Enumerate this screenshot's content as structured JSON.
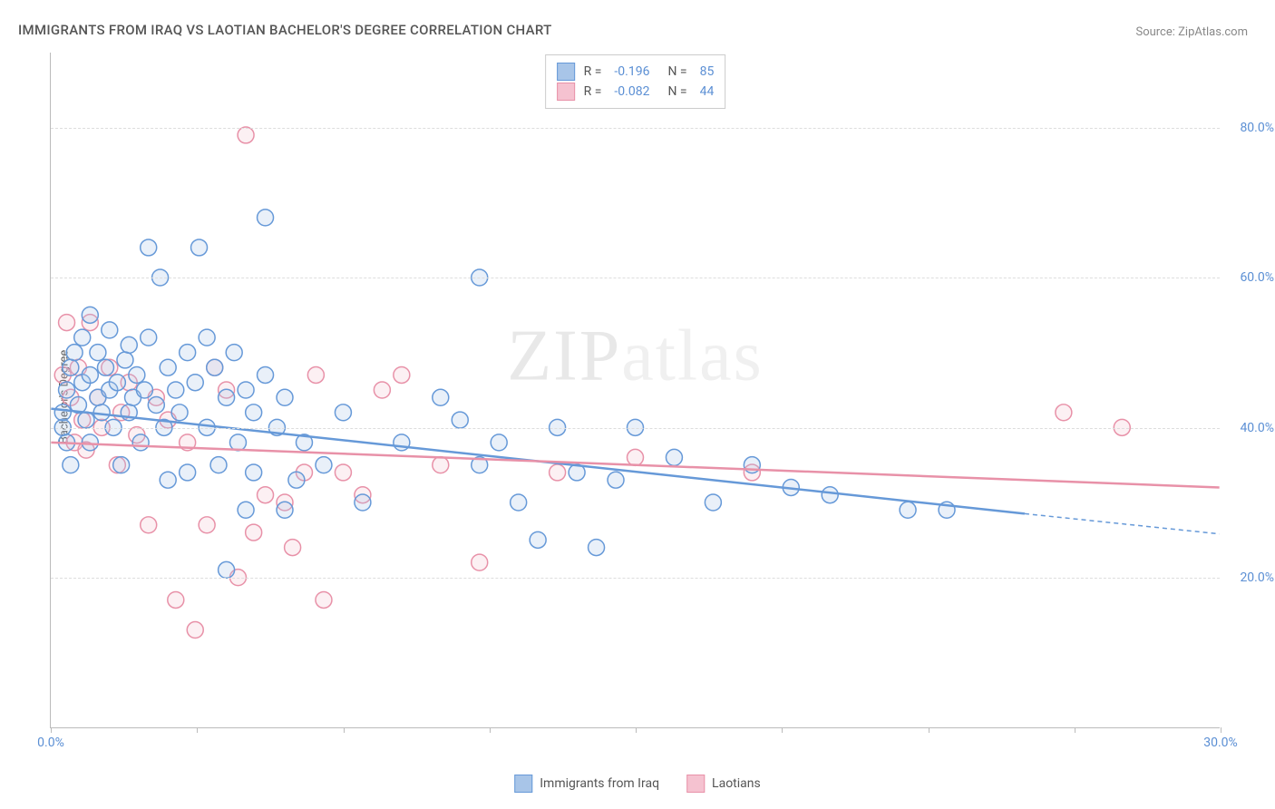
{
  "title": "IMMIGRANTS FROM IRAQ VS LAOTIAN BACHELOR'S DEGREE CORRELATION CHART",
  "source": "Source: ZipAtlas.com",
  "ylabel": "Bachelor's Degree",
  "watermark_a": "ZIP",
  "watermark_b": "atlas",
  "chart": {
    "type": "scatter",
    "xlim": [
      0,
      30
    ],
    "ylim": [
      0,
      90
    ],
    "yticks": [
      20,
      40,
      60,
      80
    ],
    "ytick_labels": [
      "20.0%",
      "40.0%",
      "60.0%",
      "80.0%"
    ],
    "xticks": [
      0,
      3.75,
      7.5,
      11.25,
      15,
      18.75,
      22.5,
      26.25,
      30
    ],
    "xtick_labels_shown": {
      "0": "0.0%",
      "30": "30.0%"
    },
    "grid_color": "#dddddd",
    "axis_color": "#bbbbbb",
    "background_color": "#ffffff",
    "tick_color": "#5b8fd4",
    "marker_radius": 9,
    "marker_stroke_width": 1.5,
    "marker_fill_opacity": 0.25,
    "line_width": 2.5,
    "series": [
      {
        "name": "Immigrants from Iraq",
        "key": "iraq",
        "color_stroke": "#6699d8",
        "color_fill": "#a8c5e8",
        "R": "-0.196",
        "N": "85",
        "trend": {
          "x1": 0,
          "y1": 42.5,
          "x2": 25,
          "y2": 28.5,
          "extrap_x2": 30,
          "extrap_y2": 25.8
        },
        "points": [
          [
            0.3,
            40
          ],
          [
            0.3,
            42
          ],
          [
            0.4,
            45
          ],
          [
            0.4,
            38
          ],
          [
            0.5,
            48
          ],
          [
            0.5,
            35
          ],
          [
            0.6,
            50
          ],
          [
            0.7,
            43
          ],
          [
            0.8,
            46
          ],
          [
            0.8,
            52
          ],
          [
            0.9,
            41
          ],
          [
            1.0,
            47
          ],
          [
            1.0,
            55
          ],
          [
            1.0,
            38
          ],
          [
            1.2,
            44
          ],
          [
            1.2,
            50
          ],
          [
            1.3,
            42
          ],
          [
            1.4,
            48
          ],
          [
            1.5,
            45
          ],
          [
            1.5,
            53
          ],
          [
            1.6,
            40
          ],
          [
            1.7,
            46
          ],
          [
            1.8,
            35
          ],
          [
            1.9,
            49
          ],
          [
            2.0,
            42
          ],
          [
            2.0,
            51
          ],
          [
            2.1,
            44
          ],
          [
            2.2,
            47
          ],
          [
            2.3,
            38
          ],
          [
            2.4,
            45
          ],
          [
            2.5,
            52
          ],
          [
            2.5,
            64
          ],
          [
            2.7,
            43
          ],
          [
            2.8,
            60
          ],
          [
            2.9,
            40
          ],
          [
            3.0,
            48
          ],
          [
            3.0,
            33
          ],
          [
            3.2,
            45
          ],
          [
            3.3,
            42
          ],
          [
            3.5,
            50
          ],
          [
            3.5,
            34
          ],
          [
            3.7,
            46
          ],
          [
            3.8,
            64
          ],
          [
            4.0,
            40
          ],
          [
            4.0,
            52
          ],
          [
            4.2,
            48
          ],
          [
            4.3,
            35
          ],
          [
            4.5,
            44
          ],
          [
            4.5,
            21
          ],
          [
            4.7,
            50
          ],
          [
            4.8,
            38
          ],
          [
            5.0,
            29
          ],
          [
            5.0,
            45
          ],
          [
            5.2,
            42
          ],
          [
            5.2,
            34
          ],
          [
            5.5,
            47
          ],
          [
            5.5,
            68
          ],
          [
            5.8,
            40
          ],
          [
            6.0,
            29
          ],
          [
            6.0,
            44
          ],
          [
            6.3,
            33
          ],
          [
            6.5,
            38
          ],
          [
            7.0,
            35
          ],
          [
            7.5,
            42
          ],
          [
            8.0,
            30
          ],
          [
            9.0,
            38
          ],
          [
            10.0,
            44
          ],
          [
            10.5,
            41
          ],
          [
            11.0,
            35
          ],
          [
            11.0,
            60
          ],
          [
            11.5,
            38
          ],
          [
            12.0,
            30
          ],
          [
            12.5,
            25
          ],
          [
            13.0,
            40
          ],
          [
            13.5,
            34
          ],
          [
            14.0,
            24
          ],
          [
            14.5,
            33
          ],
          [
            15.0,
            40
          ],
          [
            16.0,
            36
          ],
          [
            17.0,
            30
          ],
          [
            18.0,
            35
          ],
          [
            19.0,
            32
          ],
          [
            20.0,
            31
          ],
          [
            22.0,
            29
          ],
          [
            23.0,
            29
          ]
        ]
      },
      {
        "name": "Laotians",
        "key": "laotians",
        "color_stroke": "#e891a8",
        "color_fill": "#f5c2d0",
        "R": "-0.082",
        "N": "44",
        "trend": {
          "x1": 0,
          "y1": 38,
          "x2": 30,
          "y2": 32
        },
        "points": [
          [
            0.3,
            47
          ],
          [
            0.5,
            44
          ],
          [
            0.6,
            38
          ],
          [
            0.7,
            48
          ],
          [
            0.8,
            41
          ],
          [
            0.9,
            37
          ],
          [
            1.0,
            54
          ],
          [
            1.2,
            44
          ],
          [
            1.3,
            40
          ],
          [
            1.5,
            48
          ],
          [
            1.7,
            35
          ],
          [
            1.8,
            42
          ],
          [
            2.0,
            46
          ],
          [
            2.2,
            39
          ],
          [
            2.5,
            27
          ],
          [
            2.7,
            44
          ],
          [
            3.0,
            41
          ],
          [
            3.2,
            17
          ],
          [
            3.5,
            38
          ],
          [
            3.7,
            13
          ],
          [
            4.0,
            27
          ],
          [
            4.2,
            48
          ],
          [
            4.5,
            45
          ],
          [
            4.8,
            20
          ],
          [
            5.0,
            79
          ],
          [
            5.2,
            26
          ],
          [
            5.5,
            31
          ],
          [
            6.0,
            30
          ],
          [
            6.2,
            24
          ],
          [
            6.5,
            34
          ],
          [
            6.8,
            47
          ],
          [
            7.0,
            17
          ],
          [
            7.5,
            34
          ],
          [
            8.0,
            31
          ],
          [
            8.5,
            45
          ],
          [
            9.0,
            47
          ],
          [
            10.0,
            35
          ],
          [
            11.0,
            22
          ],
          [
            13.0,
            34
          ],
          [
            15.0,
            36
          ],
          [
            18.0,
            34
          ],
          [
            26.0,
            42
          ],
          [
            27.5,
            40
          ],
          [
            0.4,
            54
          ]
        ]
      }
    ],
    "legend_bottom": [
      {
        "label": "Immigrants from Iraq",
        "stroke": "#6699d8",
        "fill": "#a8c5e8"
      },
      {
        "label": "Laotians",
        "stroke": "#e891a8",
        "fill": "#f5c2d0"
      }
    ]
  }
}
